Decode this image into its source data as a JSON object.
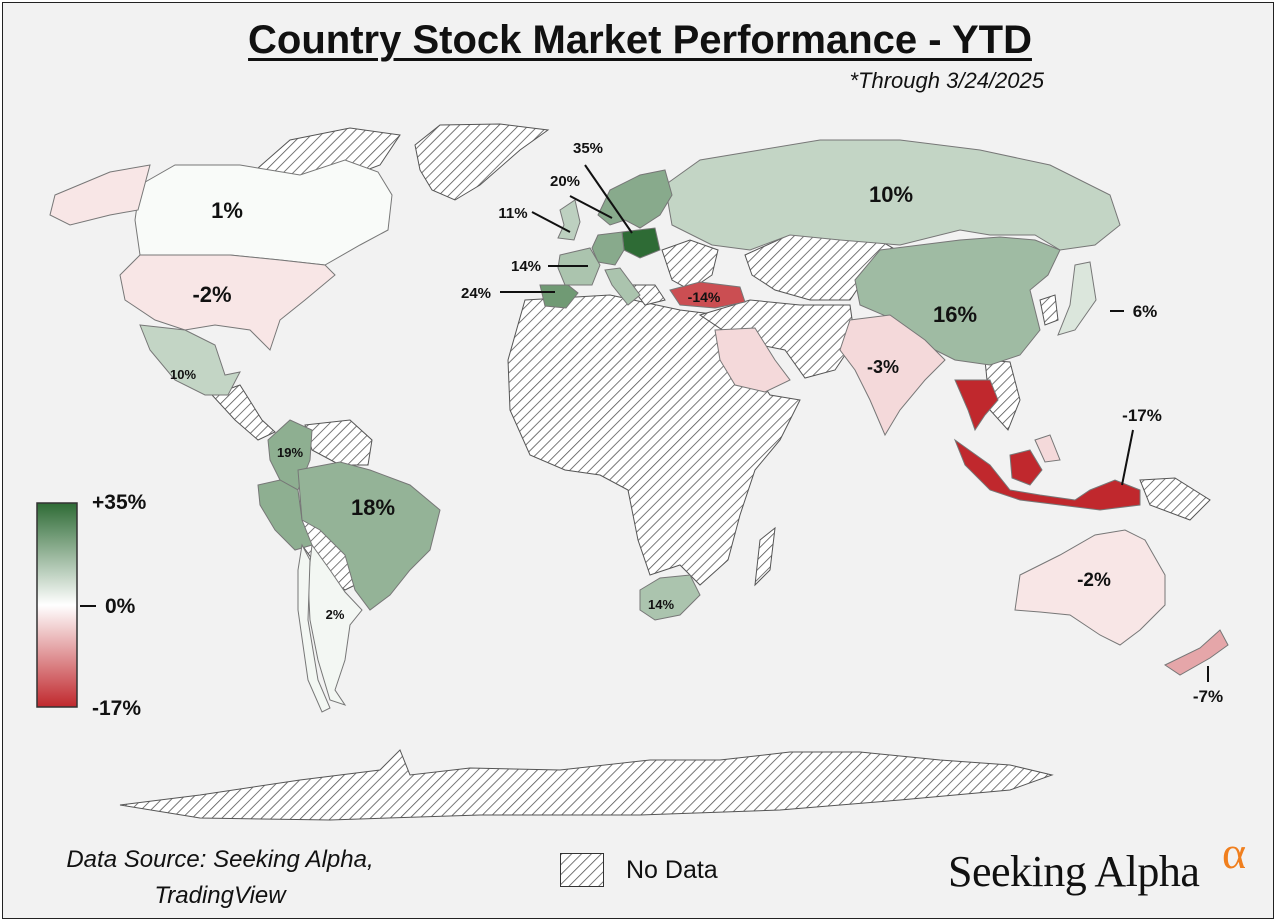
{
  "title": "Country Stock Market Performance - YTD",
  "subtitle": "*Through 3/24/2025",
  "source": "Data Source: Seeking Alpha, TradingView",
  "no_data_label": "No Data",
  "brand": "Seeking Alpha",
  "brand_mark": "α",
  "colors": {
    "background": "#f2f2f2",
    "max_green": "#2e6b35",
    "mid_white": "#ffffff",
    "min_red": "#c0282d",
    "no_data_hatch": "#555555",
    "brand_accent": "#f07f1e"
  },
  "scale": {
    "max_label": "+35%",
    "mid_label": "0%",
    "min_label": "-17%",
    "max": 35,
    "mid": 0,
    "min": -17
  },
  "countries": [
    {
      "name": "Canada",
      "value": 1,
      "label": "1%"
    },
    {
      "name": "United States",
      "value": -2,
      "label": "-2%"
    },
    {
      "name": "Mexico",
      "value": 10,
      "label": "10%"
    },
    {
      "name": "Colombia",
      "value": 19,
      "label": "19%"
    },
    {
      "name": "Brazil",
      "value": 18,
      "label": "18%"
    },
    {
      "name": "Argentina",
      "value": 2,
      "label": "2%"
    },
    {
      "name": "Russia",
      "value": 10,
      "label": "10%"
    },
    {
      "name": "Poland",
      "value": 35,
      "label": "35%"
    },
    {
      "name": "Germany",
      "value": 20,
      "label": "20%"
    },
    {
      "name": "United Kingdom",
      "value": 11,
      "label": "11%"
    },
    {
      "name": "France",
      "value": 14,
      "label": "14%"
    },
    {
      "name": "Spain",
      "value": 24,
      "label": "24%"
    },
    {
      "name": "Turkey",
      "value": -14,
      "label": "-14%"
    },
    {
      "name": "China",
      "value": 16,
      "label": "16%"
    },
    {
      "name": "Japan",
      "value": 6,
      "label": "6%"
    },
    {
      "name": "India",
      "value": -3,
      "label": "-3%"
    },
    {
      "name": "Indonesia",
      "value": -17,
      "label": "-17%"
    },
    {
      "name": "South Africa",
      "value": 14,
      "label": "14%"
    },
    {
      "name": "Australia",
      "value": -2,
      "label": "-2%"
    },
    {
      "name": "New Zealand",
      "value": -7,
      "label": "-7%"
    }
  ]
}
